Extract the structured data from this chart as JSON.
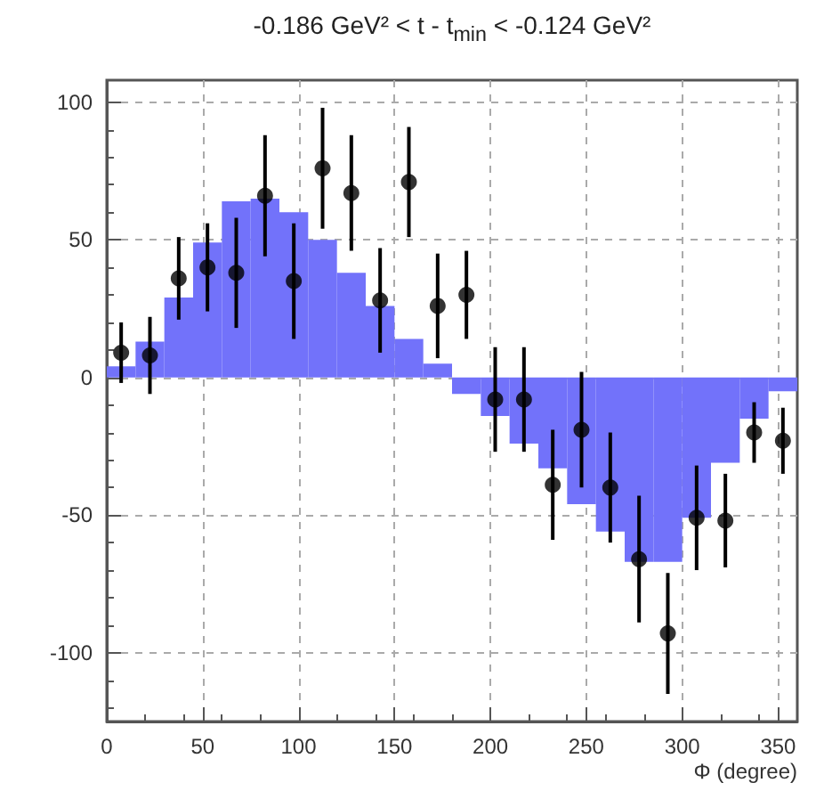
{
  "chart_data": {
    "type": "histogram",
    "title": "-0.186 GeV² < t - t$_{min}$ < -0.124 GeV²",
    "xlabel": "Φ (degree)",
    "xlim": [
      0,
      360
    ],
    "xticks": [
      0,
      50,
      100,
      150,
      200,
      250,
      300,
      350
    ],
    "ylim": [
      -125,
      108
    ],
    "yticks": [
      -100,
      -50,
      0,
      50,
      100
    ],
    "grid": true,
    "marker": "circle",
    "series": [
      {
        "color": "#7272fa",
        "bins": [
          0,
          15,
          30,
          45,
          60,
          75,
          90,
          105,
          120,
          135,
          150,
          165,
          180,
          195,
          210,
          225,
          240,
          255,
          270,
          285,
          300,
          315,
          330,
          345,
          360
        ],
        "values": [
          4,
          13,
          29,
          49,
          64,
          65,
          60,
          50,
          38,
          26,
          14,
          5,
          -6,
          -14,
          -24,
          -33,
          -46,
          -56,
          -67,
          -67,
          -51,
          -31,
          -15,
          -5
        ]
      },
      {
        "type": "scatter",
        "color": "#000000",
        "x": [
          7.5,
          22.5,
          37.5,
          52.5,
          67.5,
          82.5,
          97.5,
          112.5,
          127.5,
          142.5,
          157.5,
          172.5,
          187.5,
          202.5,
          217.5,
          232.5,
          247.5,
          262.5,
          277.5,
          292.5,
          307.5,
          322.5,
          337.5,
          352.5
        ],
        "values": [
          9,
          8,
          36,
          40,
          38,
          66,
          35,
          76,
          67,
          28,
          71,
          26,
          30,
          -8,
          -8,
          -39,
          -19,
          -40,
          -66,
          -93,
          -51,
          -52,
          -20,
          -23
        ],
        "errors": [
          11,
          14,
          15,
          16,
          20,
          22,
          21,
          22,
          21,
          19,
          20,
          19,
          16,
          19,
          19,
          20,
          21,
          20,
          23,
          22,
          19,
          17,
          11,
          12
        ]
      }
    ]
  }
}
